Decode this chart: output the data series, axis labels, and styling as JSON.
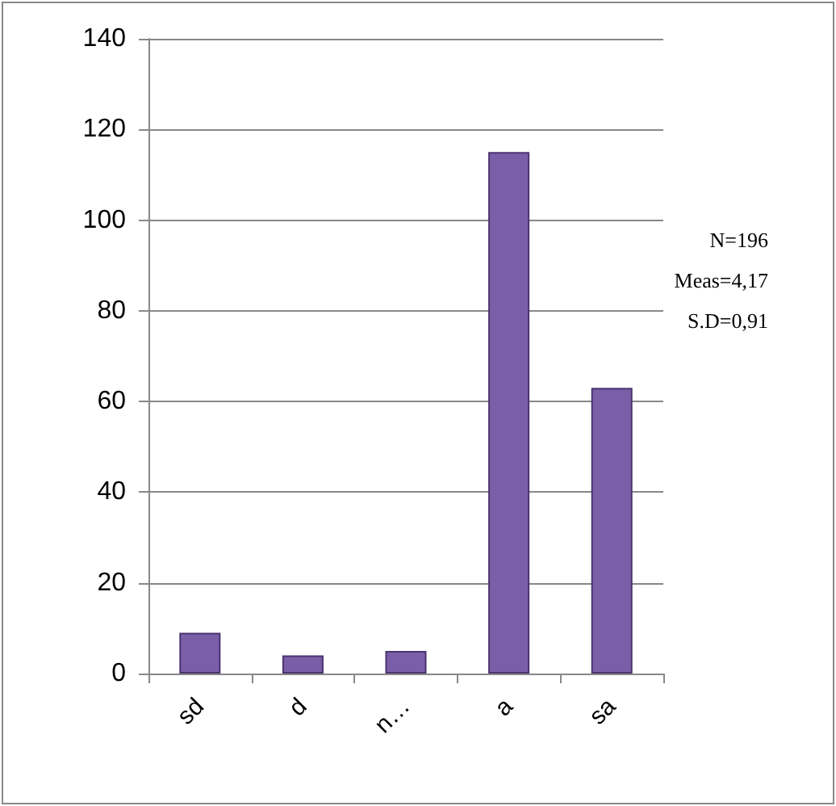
{
  "chart_data": {
    "type": "bar",
    "categories": [
      "sd",
      "d",
      "n…",
      "a",
      "sa"
    ],
    "values": [
      9,
      4,
      5,
      115,
      63
    ],
    "color": "#7b5ea8",
    "ylim": [
      0,
      140
    ],
    "yticks": [
      0,
      20,
      40,
      60,
      80,
      100,
      120,
      140
    ],
    "grid": "y",
    "annotations": [
      "N=196",
      "Meas=4,17",
      "S.D=0,91"
    ]
  }
}
